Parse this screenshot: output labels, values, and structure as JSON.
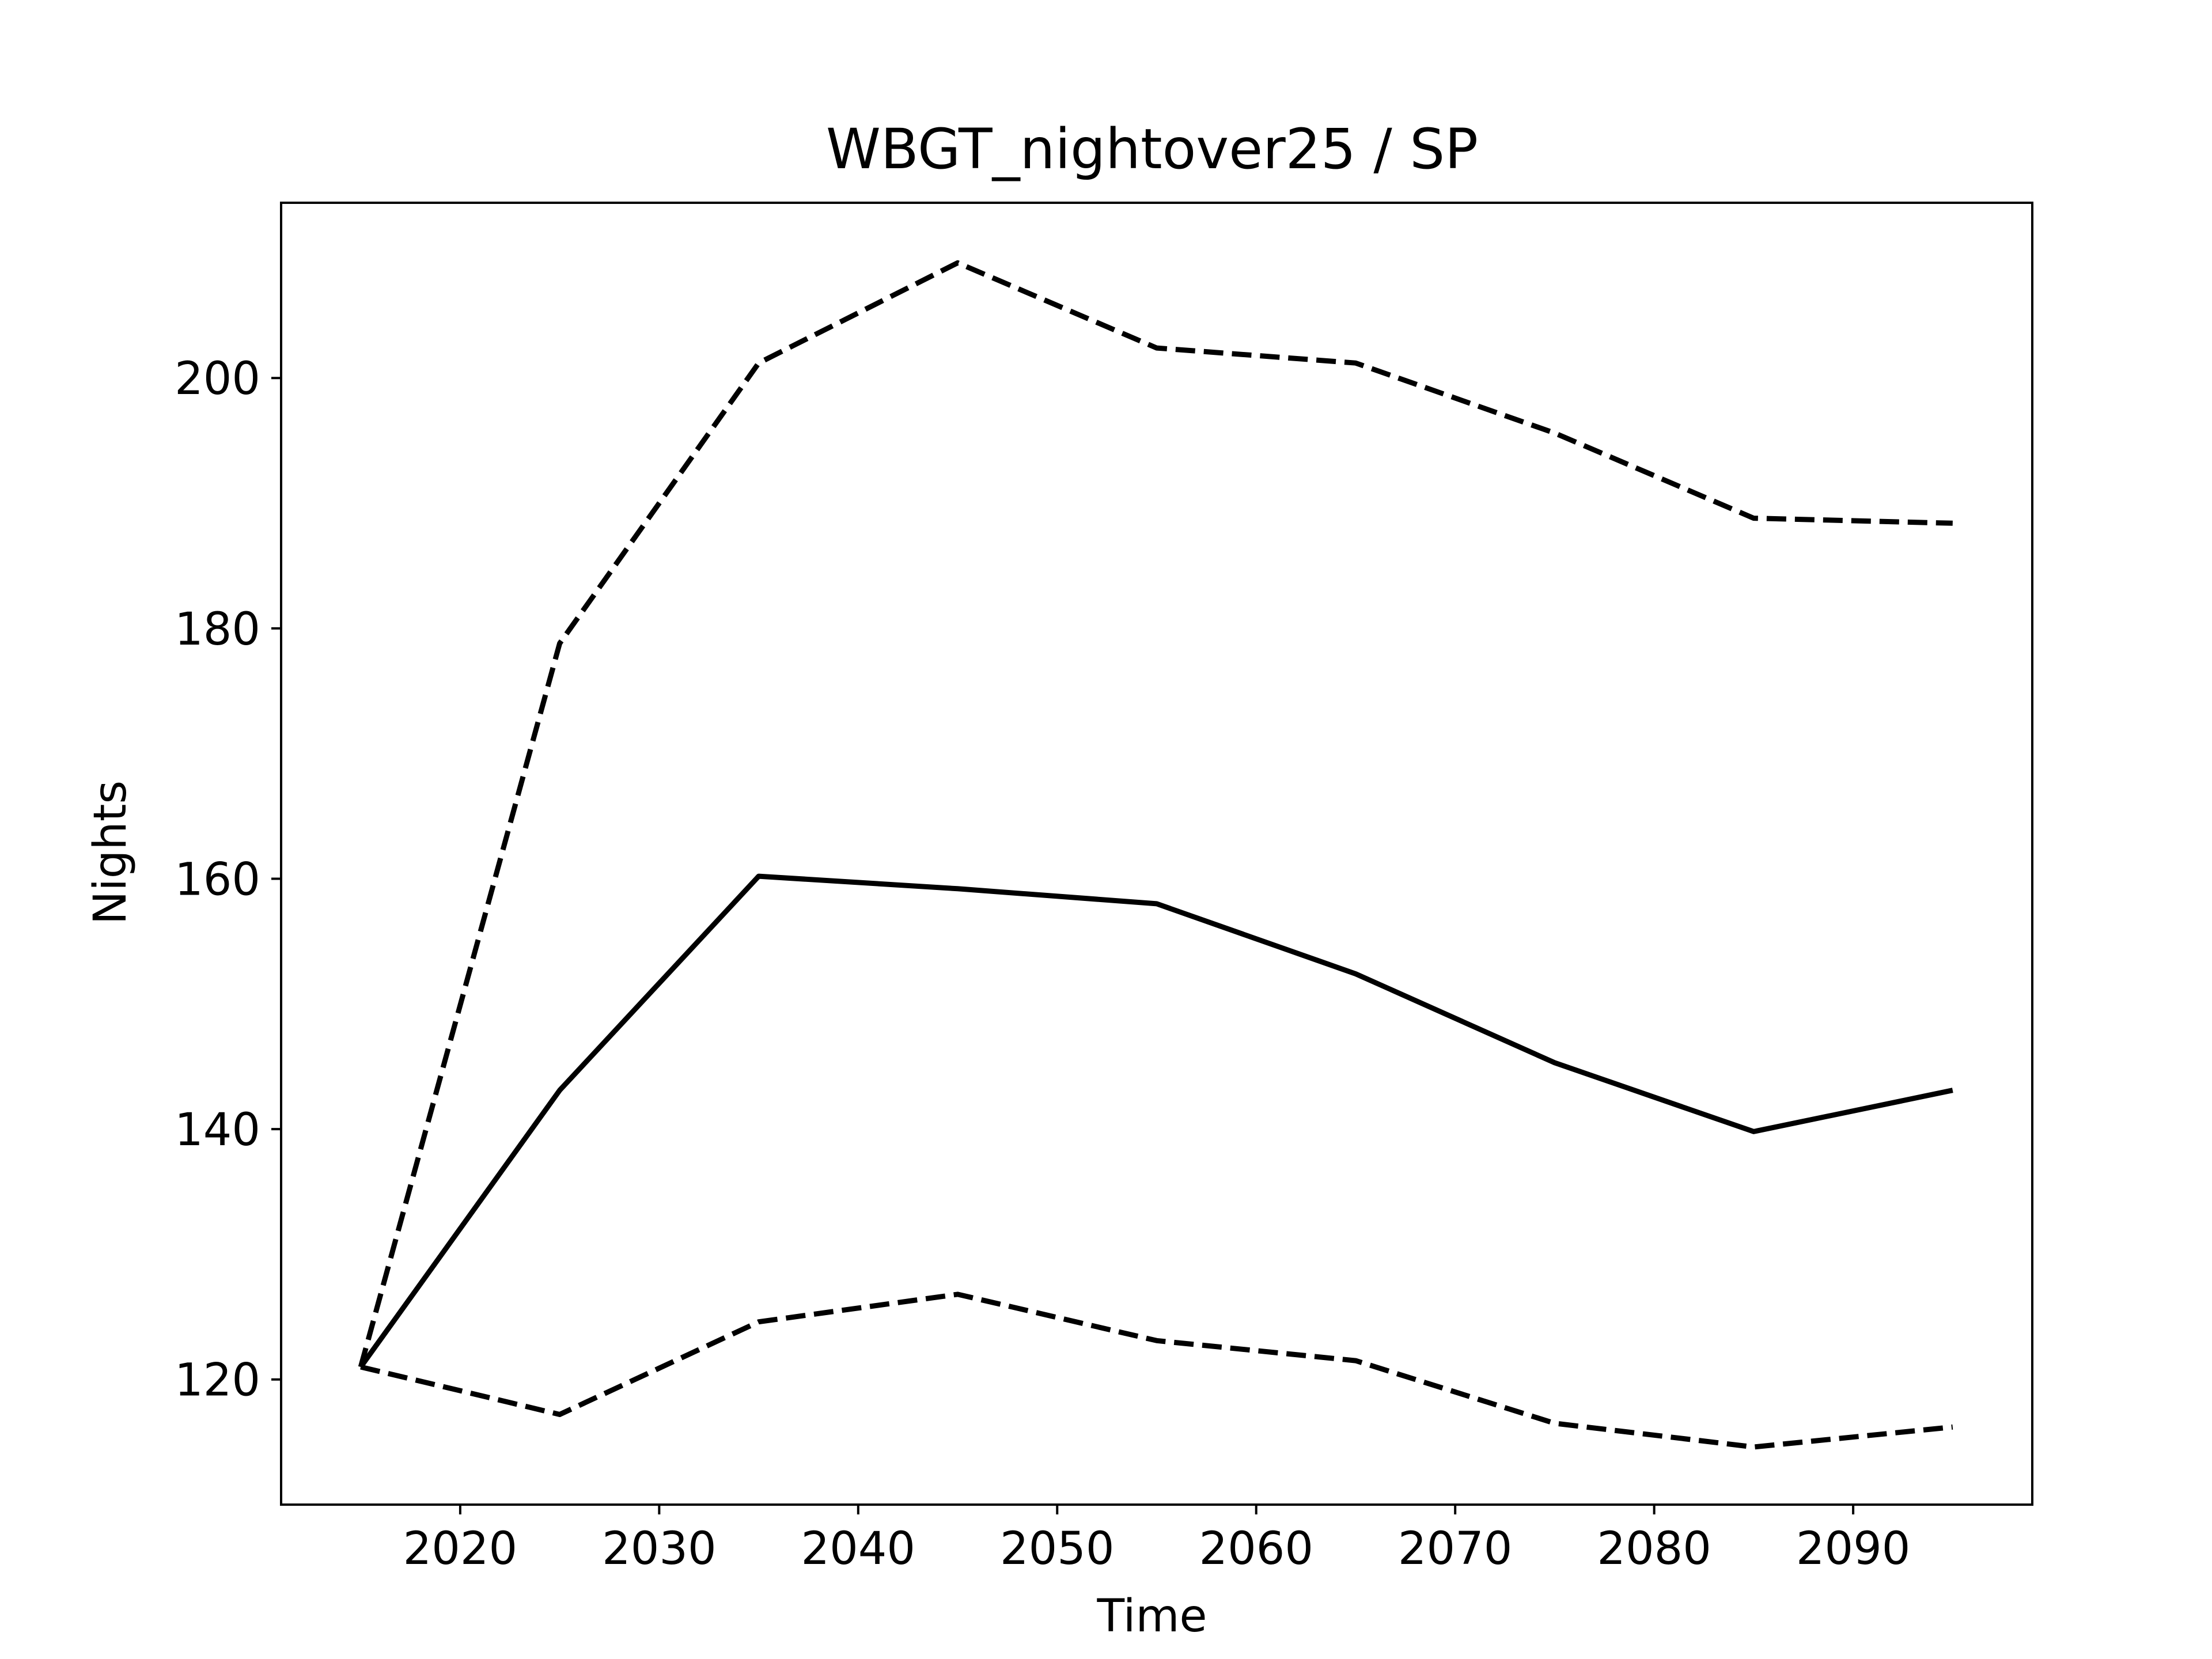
{
  "colors": {
    "background": "#ffffff",
    "line": "#000000",
    "axes": "#000000"
  },
  "chart_data": {
    "type": "line",
    "title": "WBGT_nightover25 / SP",
    "xlabel": "Time",
    "ylabel": "Nights",
    "xlim": [
      2011,
      2099
    ],
    "ylim": [
      110,
      214
    ],
    "xticks": [
      2020,
      2030,
      2040,
      2050,
      2060,
      2070,
      2080,
      2090
    ],
    "yticks": [
      120,
      140,
      160,
      180,
      200
    ],
    "grid": false,
    "legend": "none",
    "x": [
      2015,
      2025,
      2035,
      2045,
      2055,
      2065,
      2075,
      2085,
      2095
    ],
    "series": [
      {
        "style": "dashed",
        "values": [
          121,
          178.8,
          201.2,
          209.2,
          202.4,
          201.2,
          195.6,
          188.8,
          188.4
        ]
      },
      {
        "style": "solid",
        "values": [
          121,
          143.1,
          160.2,
          159.2,
          158.0,
          152.4,
          145.3,
          139.8,
          143.1
        ]
      },
      {
        "style": "dashed",
        "values": [
          121,
          117.2,
          124.6,
          126.8,
          123.1,
          121.5,
          116.5,
          114.6,
          116.2
        ]
      }
    ]
  }
}
